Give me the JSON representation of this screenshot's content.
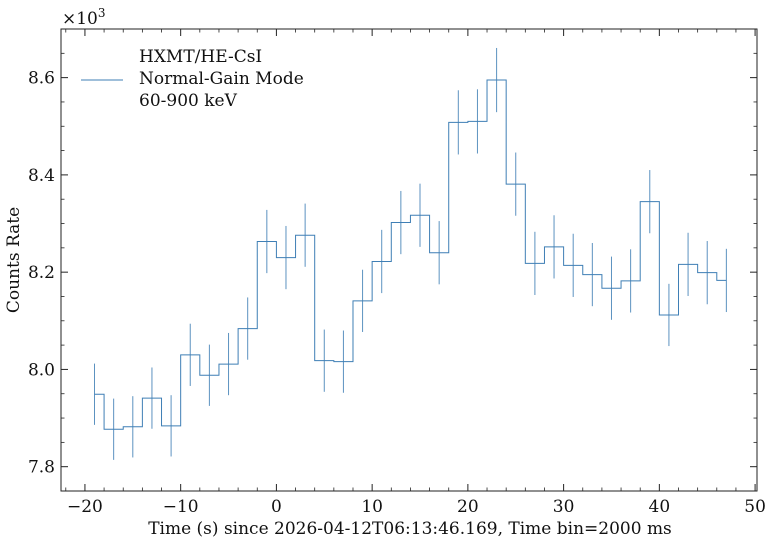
{
  "chart_data": {
    "type": "line",
    "style": "step-mid with error bars",
    "title": "",
    "xlabel": "Time (s) since 2026-04-12T06:13:46.169, Time bin=2000 ms",
    "ylabel": "Counts Rate",
    "y_scale_label": "×10",
    "y_scale_exponent": "3",
    "xlim": [
      -22.5,
      50.2
    ],
    "ylim": [
      7.75,
      8.7
    ],
    "x_ticks": [
      -20,
      -10,
      0,
      10,
      20,
      30,
      40,
      50
    ],
    "x_tick_labels": [
      "−20",
      "−10",
      "0",
      "10",
      "20",
      "30",
      "40",
      "50"
    ],
    "x_minor_step": 2,
    "y_ticks": [
      7.8,
      8.0,
      8.2,
      8.4,
      8.6
    ],
    "y_tick_labels": [
      "7.8",
      "8.0",
      "8.2",
      "8.4",
      "8.6"
    ],
    "y_minor_step": 0.05,
    "grid": false,
    "legend": {
      "placement": "top-left",
      "lines": [
        "HXMT/HE-CsI",
        "Normal-Gain Mode",
        "60-900 keV"
      ]
    },
    "series": [
      {
        "name": "HXMT/HE-CsI Normal-Gain Mode 60-900 keV",
        "color": "#3f7fb5",
        "x": [
          -19,
          -17,
          -15,
          -13,
          -11,
          -9,
          -7,
          -5,
          -3,
          -1,
          1,
          3,
          5,
          7,
          9,
          11,
          13,
          15,
          17,
          19,
          21,
          23,
          25,
          27,
          29,
          31,
          33,
          35,
          37,
          39,
          41,
          43,
          45,
          47
        ],
        "y": [
          7.949,
          7.877,
          7.882,
          7.941,
          7.884,
          8.03,
          7.988,
          8.011,
          8.084,
          8.263,
          8.23,
          8.276,
          8.018,
          8.016,
          8.141,
          8.222,
          8.302,
          8.317,
          8.24,
          8.508,
          8.51,
          8.595,
          8.381,
          8.218,
          8.252,
          8.214,
          8.195,
          8.167,
          8.182,
          8.345,
          8.112,
          8.216,
          8.199,
          8.183
        ],
        "yerr": [
          0.063,
          0.063,
          0.063,
          0.063,
          0.063,
          0.064,
          0.063,
          0.064,
          0.064,
          0.065,
          0.065,
          0.065,
          0.064,
          0.064,
          0.064,
          0.065,
          0.065,
          0.065,
          0.065,
          0.066,
          0.066,
          0.066,
          0.065,
          0.065,
          0.065,
          0.065,
          0.065,
          0.065,
          0.065,
          0.065,
          0.064,
          0.065,
          0.065,
          0.065
        ]
      }
    ]
  }
}
